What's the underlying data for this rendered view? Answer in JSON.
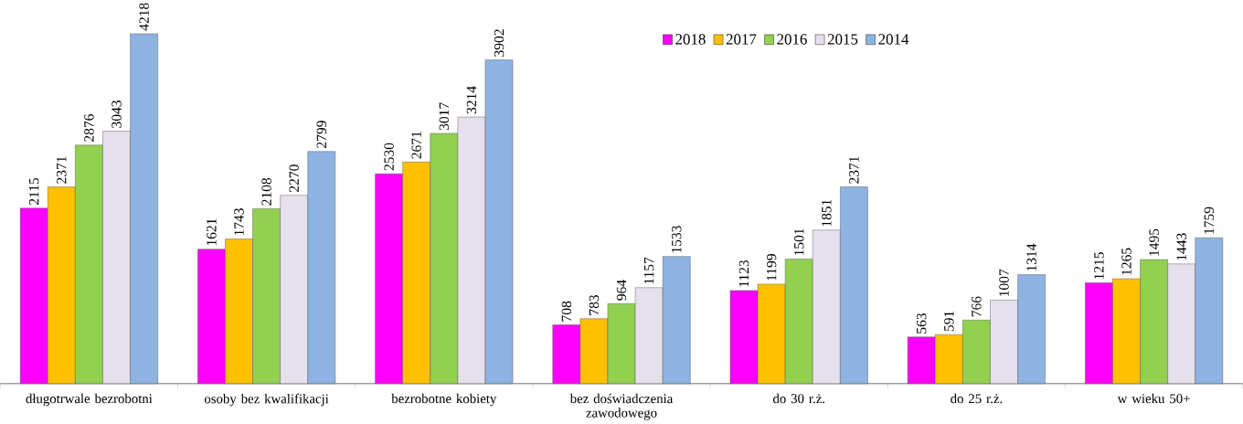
{
  "chart_data": {
    "type": "bar",
    "categories": [
      "długotrwale bezrobotni",
      "osoby bez kwalifikacji",
      "bezrobotne kobiety",
      "bez doświadczenia zawodowego",
      "do 30 r.ż.",
      "do 25 r.ż.",
      "w wieku 50+"
    ],
    "series": [
      {
        "name": "2018",
        "color": "#ff00ff",
        "values": [
          2115,
          1621,
          2530,
          708,
          1123,
          563,
          1215
        ]
      },
      {
        "name": "2017",
        "color": "#ffc000",
        "values": [
          2371,
          1743,
          2671,
          783,
          1199,
          591,
          1265
        ]
      },
      {
        "name": "2016",
        "color": "#92d050",
        "values": [
          2876,
          2108,
          3017,
          964,
          1501,
          766,
          1495
        ]
      },
      {
        "name": "2015",
        "color": "#e6e0ec",
        "values": [
          3043,
          2270,
          3214,
          1157,
          1851,
          1007,
          1443
        ]
      },
      {
        "name": "2014",
        "color": "#8db3e2",
        "values": [
          4218,
          2799,
          3902,
          1533,
          2371,
          1314,
          1759
        ]
      }
    ],
    "data_labels": true,
    "legend": "top right",
    "grid": false,
    "tick_labels": "x"
  }
}
